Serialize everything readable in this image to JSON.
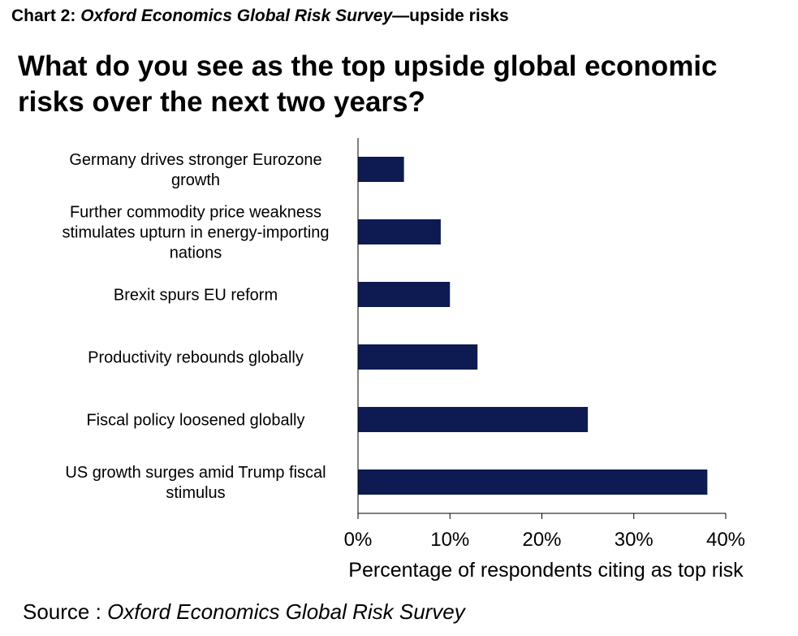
{
  "header": {
    "chart_label": "Chart 2:",
    "survey_name": "Oxford Economics Global Risk Survey",
    "suffix": "—upside risks"
  },
  "chart_data": {
    "type": "bar",
    "orientation": "horizontal",
    "title": "What do you see as the top upside global economic risks over the next two years?",
    "categories": [
      "Germany drives stronger Eurozone growth",
      "Further commodity price weakness stimulates upturn in energy-importing nations",
      "Brexit spurs EU reform",
      "Productivity rebounds globally",
      "Fiscal policy loosened globally",
      "US growth surges amid Trump fiscal stimulus"
    ],
    "category_lines": [
      [
        "Germany drives stronger Eurozone",
        "growth"
      ],
      [
        "Further commodity price weakness",
        "stimulates upturn in energy-importing",
        "nations"
      ],
      [
        "Brexit spurs EU reform"
      ],
      [
        "Productivity rebounds globally"
      ],
      [
        "Fiscal policy loosened globally"
      ],
      [
        "US growth surges amid Trump fiscal",
        "stimulus"
      ]
    ],
    "values": [
      5,
      9,
      10,
      13,
      25,
      38
    ],
    "xlim": [
      0,
      40
    ],
    "xticks": [
      0,
      10,
      20,
      30,
      40
    ],
    "xtick_labels": [
      "0%",
      "10%",
      "20%",
      "30%",
      "40%"
    ],
    "xlabel": "Percentage of respondents citing as top risk",
    "ylabel": "",
    "grid": false,
    "legend": "none",
    "bar_color": "#0d1b52"
  },
  "source": {
    "prefix": "Source : ",
    "name": "Oxford Economics Global Risk Survey"
  }
}
